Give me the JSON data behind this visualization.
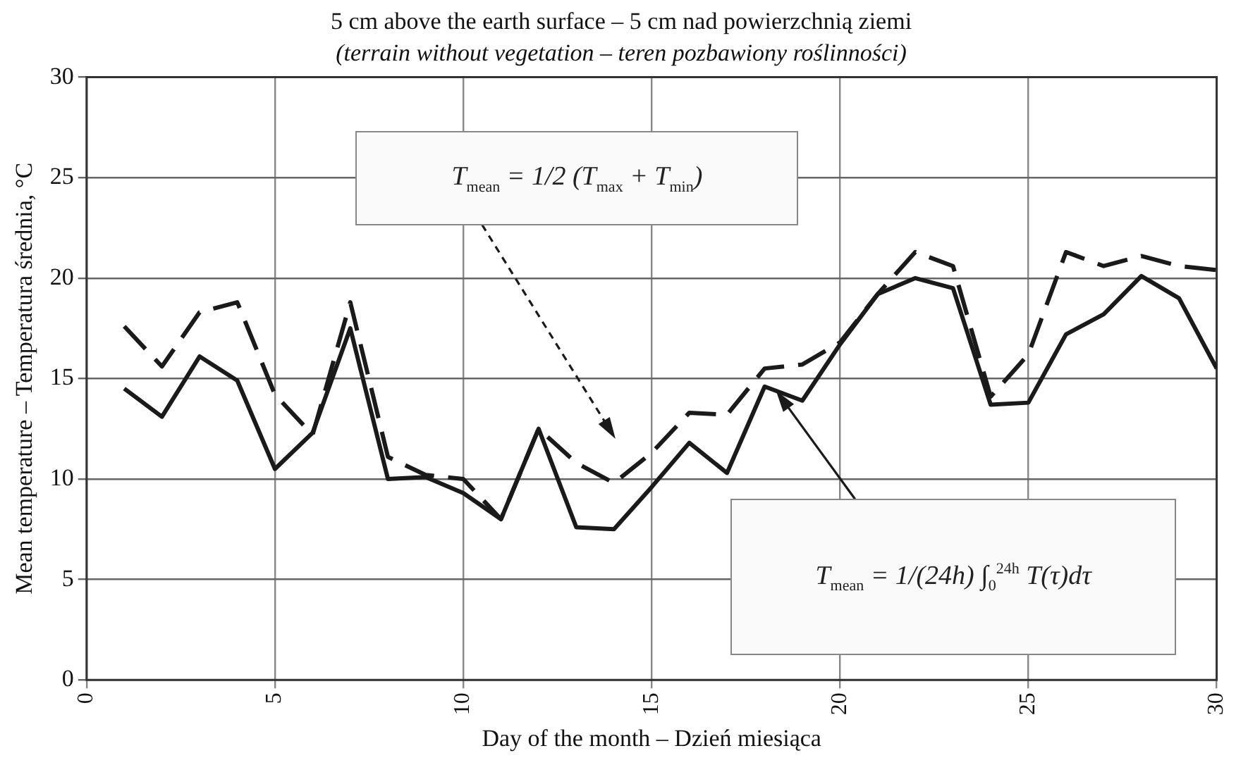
{
  "chart_data": {
    "type": "line",
    "title": "5 cm above the earth surface – 5 cm nad powierzchnią ziemi",
    "subtitle": "(terrain without vegetation – teren pozbawiony roślinności)",
    "xlabel": "Day of the month – Dzień miesiąca",
    "ylabel": "Mean temperature – Temperatura średnia, °C",
    "x": [
      1,
      2,
      3,
      4,
      5,
      6,
      7,
      8,
      9,
      10,
      11,
      12,
      13,
      14,
      15,
      16,
      17,
      18,
      19,
      20,
      21,
      22,
      23,
      24,
      25,
      26,
      27,
      28,
      29,
      30
    ],
    "series": [
      {
        "color": "#1a1a1a",
        "line_style": "solid",
        "values": [
          14.5,
          13.1,
          16.1,
          14.9,
          10.5,
          12.3,
          17.5,
          10.0,
          10.1,
          9.3,
          8.0,
          12.5,
          7.6,
          7.5,
          9.6,
          11.8,
          10.3,
          14.6,
          13.9,
          16.7,
          19.2,
          20.0,
          19.5,
          13.7,
          13.8,
          17.2,
          18.2,
          20.1,
          19.0,
          15.5
        ]
      },
      {
        "color": "#1a1a1a",
        "line_style": "dashed",
        "values": [
          17.6,
          15.6,
          18.3,
          18.8,
          14.2,
          12.2,
          18.8,
          11.1,
          10.2,
          10.0,
          8.0,
          12.5,
          10.8,
          9.8,
          11.3,
          13.3,
          13.2,
          15.5,
          15.7,
          16.8,
          19.2,
          21.3,
          20.6,
          14.1,
          16.2,
          21.3,
          20.6,
          21.1,
          20.6,
          20.4
        ]
      }
    ],
    "annotations": [
      "T$_{mean}$ = 1/2 (T$_{max}$ + T$_{min}$)",
      "T$_{mean}$ = 1/(24h) ∫$_{0}$$^{24h}$ T(τ)dτ"
    ],
    "xlim": [
      0,
      30
    ],
    "xticks": [
      0,
      5,
      10,
      15,
      20,
      25,
      30
    ],
    "ylim": [
      0,
      30
    ],
    "yticks": [
      0,
      5,
      10,
      15,
      20,
      25,
      30
    ],
    "grid": true,
    "legend": false,
    "marker": "none"
  }
}
